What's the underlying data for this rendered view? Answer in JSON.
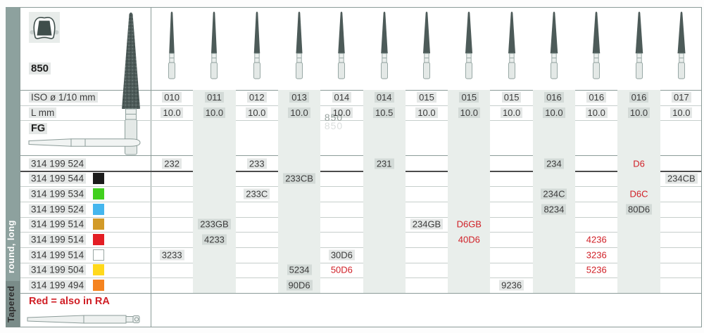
{
  "sidebar": {
    "top_label": "round, long",
    "bottom_label": "Tapered"
  },
  "header": {
    "figure_number": "850",
    "iso_label": "ISO ø 1/10 mm",
    "length_label": "L mm",
    "shank_label": "FG",
    "watermark": "850"
  },
  "columns": {
    "iso": [
      "010",
      "011",
      "012",
      "013",
      "014",
      "014",
      "015",
      "015",
      "015",
      "016",
      "016",
      "016",
      "017"
    ],
    "l_mm": [
      "10.0",
      "10.0",
      "10.0",
      "10.0",
      "10.0",
      "10.5",
      "10.0",
      "10.0",
      "10.0",
      "10.0",
      "10.0",
      "10.0",
      "10.0"
    ]
  },
  "rows": [
    {
      "code": "314 199 524",
      "chip": null,
      "cells": [
        {
          "col": 1,
          "text": "232"
        },
        {
          "col": 3,
          "text": "233"
        },
        {
          "col": 6,
          "text": "231"
        },
        {
          "col": 10,
          "text": "234"
        },
        {
          "col": 12,
          "text": "D6",
          "red": true
        }
      ]
    },
    {
      "code": "314 199 544",
      "chip": {
        "name": "black",
        "color": "#1b1b1b"
      },
      "cells": [
        {
          "col": 4,
          "text": "233CB"
        },
        {
          "col": 13,
          "text": "234CB"
        }
      ]
    },
    {
      "code": "314 199 534",
      "chip": {
        "name": "green",
        "color": "#41d01e"
      },
      "cells": [
        {
          "col": 3,
          "text": "233C"
        },
        {
          "col": 10,
          "text": "234C"
        },
        {
          "col": 12,
          "text": "D6C",
          "red": true
        }
      ]
    },
    {
      "code": "314 199 524",
      "chip": {
        "name": "light-blue",
        "color": "#45b6ee"
      },
      "cells": [
        {
          "col": 10,
          "text": "8234"
        },
        {
          "col": 12,
          "text": "80D6"
        }
      ]
    },
    {
      "code": "314 199 514",
      "chip": {
        "name": "goldenrod",
        "color": "#d29a28"
      },
      "cells": [
        {
          "col": 2,
          "text": "233GB"
        },
        {
          "col": 7,
          "text": "234GB"
        },
        {
          "col": 8,
          "text": "D6GB",
          "red": true
        }
      ]
    },
    {
      "code": "314 199 514",
      "chip": {
        "name": "red",
        "color": "#e31e24"
      },
      "cells": [
        {
          "col": 2,
          "text": "4233"
        },
        {
          "col": 8,
          "text": "40D6",
          "red": true
        },
        {
          "col": 11,
          "text": "4236",
          "red": true
        }
      ]
    },
    {
      "code": "314 199 514",
      "chip": {
        "name": "white",
        "color": "#ffffff",
        "border": true
      },
      "cells": [
        {
          "col": 1,
          "text": "3233"
        },
        {
          "col": 5,
          "text": "30D6"
        },
        {
          "col": 11,
          "text": "3236",
          "red": true
        }
      ]
    },
    {
      "code": "314 199 504",
      "chip": {
        "name": "yellow",
        "color": "#ffd91c"
      },
      "cells": [
        {
          "col": 4,
          "text": "5234"
        },
        {
          "col": 5,
          "text": "50D6",
          "red": true
        },
        {
          "col": 11,
          "text": "5236",
          "red": true
        }
      ]
    },
    {
      "code": "314 199 494",
      "chip": {
        "name": "orange",
        "color": "#f5831f"
      },
      "cells": [
        {
          "col": 4,
          "text": "90D6"
        },
        {
          "col": 9,
          "text": "9236"
        }
      ]
    }
  ],
  "footer": {
    "note": "Red = also in RA"
  },
  "colors": {
    "accent_red": "#d01f26",
    "sidebar": "#8da19e",
    "stripe": "#e9eeeb",
    "bur_dark": "#4d5b59"
  }
}
